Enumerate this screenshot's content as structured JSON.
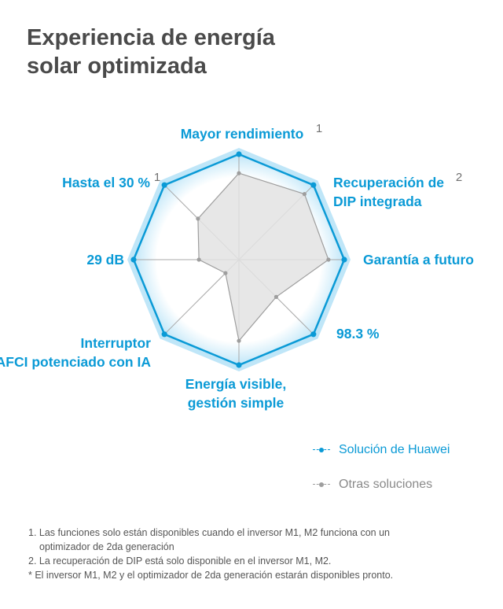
{
  "title_lines": [
    "Experiencia de energía",
    "solar optimizada"
  ],
  "colors": {
    "accent": "#0a9ad6",
    "gray": "#9e9e9e",
    "fill_gray": "#e3e3e3",
    "glow": "#bfe6f8",
    "text_dark": "#4a4a4a"
  },
  "chart_data": {
    "type": "radar",
    "axes": [
      {
        "label": "Mayor rendimiento",
        "sup": "1"
      },
      {
        "label": "Recuperación de DIP integrada",
        "sup": "2"
      },
      {
        "label": "Garantía a futuro",
        "sup": ""
      },
      {
        "label": "98.3 %",
        "sup": ""
      },
      {
        "label": "Energía visible, gestión simple",
        "sup": ""
      },
      {
        "label": "Interruptor AFCI potenciado con IA",
        "sup": ""
      },
      {
        "label": "29 dB",
        "sup": ""
      },
      {
        "label": "Hasta el 30 %",
        "sup": "1"
      }
    ],
    "scale": [
      0,
      1
    ],
    "series": [
      {
        "name": "Solución de Huawei",
        "color": "#0a9ad6",
        "values": [
          1,
          1,
          1,
          1,
          1,
          1,
          1,
          1
        ]
      },
      {
        "name": "Otras soluciones",
        "color": "#9e9e9e",
        "values": [
          0.82,
          0.88,
          0.85,
          0.5,
          0.77,
          0.18,
          0.38,
          0.55
        ]
      }
    ],
    "legend_position": "bottom-right"
  },
  "footnotes": [
    "1. Las funciones solo están disponibles cuando el inversor M1, M2 funciona con un",
    "optimizador de 2da generación",
    "2. La recuperación de DIP está solo disponible en el inversor M1, M2.",
    "* El inversor M1, M2 y el optimizador de 2da generación estarán disponibles pronto."
  ]
}
